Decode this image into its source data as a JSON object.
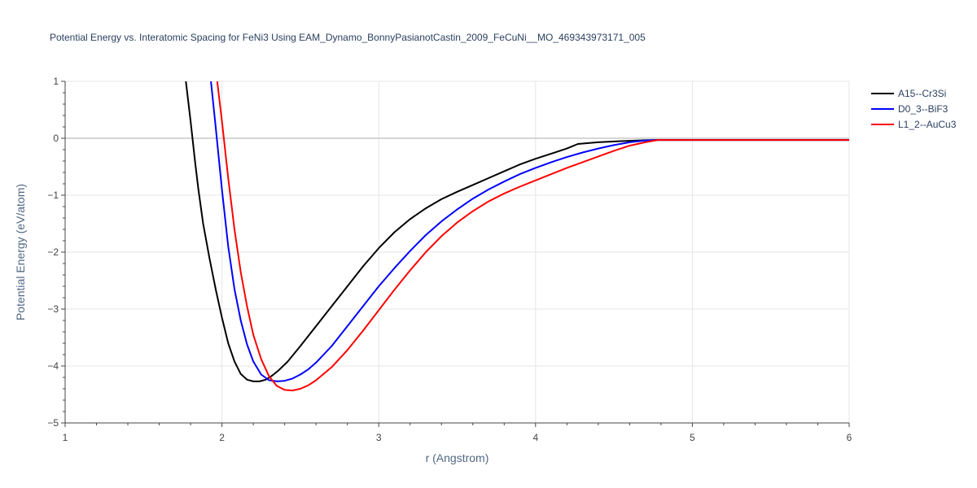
{
  "chart_data": {
    "type": "line",
    "title": "Potential Energy vs. Interatomic Spacing for FeNi3 Using EAM_Dynamo_BonnyPasianotCastin_2009_FeCuNi__MO_469343973171_005",
    "xlabel": "r (Angstrom)",
    "ylabel": "Potential Energy (eV/atom)",
    "xlim": [
      1,
      6
    ],
    "ylim": [
      -5,
      1
    ],
    "xticks": [
      1,
      2,
      3,
      4,
      5,
      6
    ],
    "yticks": [
      1,
      0,
      -1,
      -2,
      -3,
      -4,
      -5
    ],
    "xtick_labels": [
      "1",
      "2",
      "3",
      "4",
      "5",
      "6"
    ],
    "ytick_labels": [
      "1",
      "0",
      "−1",
      "−2",
      "−3",
      "−4",
      "−5"
    ],
    "grid": true,
    "legend_position": "top-right",
    "series": [
      {
        "name": "A15--Cr3Si",
        "color": "#000000",
        "x": [
          1.77,
          1.8,
          1.83,
          1.85,
          1.88,
          1.92,
          1.96,
          2.0,
          2.04,
          2.08,
          2.12,
          2.16,
          2.2,
          2.24,
          2.28,
          2.32,
          2.36,
          2.42,
          2.5,
          2.6,
          2.7,
          2.8,
          2.9,
          3.0,
          3.1,
          3.2,
          3.3,
          3.4,
          3.5,
          3.6,
          3.7,
          3.8,
          3.9,
          4.0,
          4.1,
          4.2,
          4.27,
          4.4,
          4.55,
          4.7,
          4.78,
          5.0,
          5.5,
          6.0
        ],
        "y": [
          1.0,
          0.3,
          -0.45,
          -0.9,
          -1.5,
          -2.1,
          -2.65,
          -3.15,
          -3.6,
          -3.92,
          -4.14,
          -4.24,
          -4.27,
          -4.27,
          -4.24,
          -4.17,
          -4.08,
          -3.92,
          -3.65,
          -3.3,
          -2.95,
          -2.6,
          -2.25,
          -1.93,
          -1.65,
          -1.42,
          -1.23,
          -1.07,
          -0.94,
          -0.82,
          -0.7,
          -0.58,
          -0.46,
          -0.36,
          -0.27,
          -0.18,
          -0.1,
          -0.07,
          -0.05,
          -0.035,
          -0.03,
          -0.03,
          -0.03,
          -0.03
        ]
      },
      {
        "name": "D0_3--BiF3",
        "color": "#0000ff",
        "x": [
          1.93,
          1.96,
          2.0,
          2.04,
          2.08,
          2.12,
          2.16,
          2.2,
          2.25,
          2.3,
          2.35,
          2.4,
          2.45,
          2.5,
          2.55,
          2.6,
          2.7,
          2.8,
          2.9,
          3.0,
          3.1,
          3.2,
          3.3,
          3.4,
          3.5,
          3.6,
          3.7,
          3.8,
          3.9,
          4.0,
          4.1,
          4.2,
          4.3,
          4.4,
          4.5,
          4.6,
          4.7,
          4.78,
          5.0,
          5.5,
          6.0
        ],
        "y": [
          1.0,
          0.2,
          -0.9,
          -1.9,
          -2.65,
          -3.2,
          -3.62,
          -3.92,
          -4.15,
          -4.25,
          -4.27,
          -4.26,
          -4.22,
          -4.15,
          -4.06,
          -3.94,
          -3.65,
          -3.3,
          -2.95,
          -2.6,
          -2.28,
          -1.98,
          -1.7,
          -1.46,
          -1.25,
          -1.06,
          -0.9,
          -0.76,
          -0.63,
          -0.52,
          -0.42,
          -0.33,
          -0.25,
          -0.18,
          -0.12,
          -0.07,
          -0.04,
          -0.03,
          -0.03,
          -0.03,
          -0.03
        ]
      },
      {
        "name": "L1_2--AuCu3",
        "color": "#ff0000",
        "x": [
          1.97,
          2.0,
          2.04,
          2.08,
          2.12,
          2.16,
          2.2,
          2.25,
          2.3,
          2.35,
          2.4,
          2.45,
          2.5,
          2.55,
          2.6,
          2.7,
          2.8,
          2.9,
          3.0,
          3.1,
          3.2,
          3.3,
          3.4,
          3.5,
          3.6,
          3.7,
          3.8,
          3.9,
          4.0,
          4.1,
          4.2,
          4.3,
          4.4,
          4.5,
          4.6,
          4.7,
          4.78,
          5.0,
          5.5,
          6.0
        ],
        "y": [
          1.0,
          0.3,
          -0.7,
          -1.6,
          -2.35,
          -2.95,
          -3.45,
          -3.88,
          -4.18,
          -4.35,
          -4.42,
          -4.43,
          -4.4,
          -4.34,
          -4.25,
          -4.02,
          -3.72,
          -3.38,
          -3.02,
          -2.66,
          -2.32,
          -2.0,
          -1.72,
          -1.48,
          -1.28,
          -1.11,
          -0.97,
          -0.85,
          -0.74,
          -0.63,
          -0.52,
          -0.42,
          -0.32,
          -0.22,
          -0.13,
          -0.07,
          -0.03,
          -0.03,
          -0.03,
          -0.03
        ]
      }
    ]
  }
}
